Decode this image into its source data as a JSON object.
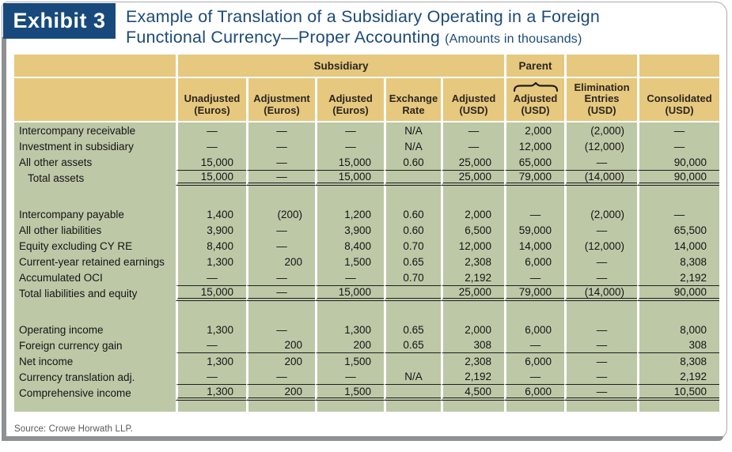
{
  "exhibit": {
    "label": "Exhibit 3",
    "title": "Example of Translation of a Subsidiary Operating in a Foreign\nFunctional Currency—Proper Accounting ",
    "subtitle": "(Amounts in thousands)",
    "source": "Source: Crowe Horwath LLP."
  },
  "colors": {
    "navy_tab": "#17497C",
    "header_tan": "#E6C87E",
    "body_green": "#BDC8A7",
    "rule_black": "#1E1E1E",
    "frame_gray": "#8E9092"
  },
  "table": {
    "groups": {
      "subsidiary": "Subsidiary",
      "parent": "Parent"
    },
    "columns": [
      {
        "label": ""
      },
      {
        "label": "Unadjusted\n(Euros)"
      },
      {
        "label": "Adjustment\n(Euros)"
      },
      {
        "label": "Adjusted\n(Euros)"
      },
      {
        "label": "Exchange\nRate"
      },
      {
        "label": "Adjusted\n(USD)"
      },
      {
        "label": "Adjusted\n(USD)",
        "brace": true
      },
      {
        "label": "Elimination\nEntries\n(USD)"
      },
      {
        "label": "Consolidated\n(USD)"
      }
    ],
    "rows": [
      {
        "label": "Intercompany receivable",
        "values": [
          "—",
          "—",
          "—",
          "N/A",
          "—",
          "2,000",
          "(2,000)",
          "—"
        ]
      },
      {
        "label": "Investment in subsidiary",
        "values": [
          "—",
          "—",
          "—",
          "N/A",
          "—",
          "12,000",
          "(12,000)",
          "—"
        ]
      },
      {
        "label": "All other assets",
        "values": [
          "15,000",
          "—",
          "15,000",
          "0.60",
          "25,000",
          "65,000",
          "—",
          "90,000"
        ]
      },
      {
        "label": "Total assets",
        "indent": true,
        "rule_top": "single",
        "rule_bottom": "double",
        "values": [
          "15,000",
          "—",
          "15,000",
          "",
          "25,000",
          "79,000",
          "(14,000)",
          "90,000"
        ]
      },
      {
        "spacer": true
      },
      {
        "label": "Intercompany payable",
        "values": [
          "1,400",
          "(200)",
          "1,200",
          "0.60",
          "2,000",
          "—",
          "(2,000)",
          "—"
        ]
      },
      {
        "label": "All other liabilities",
        "values": [
          "3,900",
          "—",
          "3,900",
          "0.60",
          "6,500",
          "59,000",
          "—",
          "65,500"
        ]
      },
      {
        "label": "Equity excluding CY RE",
        "values": [
          "8,400",
          "—",
          "8,400",
          "0.70",
          "12,000",
          "14,000",
          "(12,000)",
          "14,000"
        ]
      },
      {
        "label": "Current-year retained earnings",
        "values": [
          "1,300",
          "200",
          "1,500",
          "0.65",
          "2,308",
          "6,000",
          "—",
          "8,308"
        ]
      },
      {
        "label": "Accumulated OCI",
        "values": [
          "—",
          "—",
          "—",
          "0.70",
          "2,192",
          "—",
          "—",
          "2,192"
        ]
      },
      {
        "label": "Total liabilities and equity",
        "rule_top": "single",
        "rule_bottom": "double",
        "values": [
          "15,000",
          "—",
          "15,000",
          "",
          "25,000",
          "79,000",
          "(14,000)",
          "90,000"
        ]
      },
      {
        "spacer": true
      },
      {
        "label": "Operating income",
        "values": [
          "1,300",
          "—",
          "1,300",
          "0.65",
          "2,000",
          "6,000",
          "—",
          "8,000"
        ]
      },
      {
        "label": "Foreign currency gain",
        "rule_bottom": "single",
        "values": [
          "—",
          "200",
          "200",
          "0.65",
          "308",
          "—",
          "—",
          "308"
        ]
      },
      {
        "label": "Net income",
        "values": [
          "1,300",
          "200",
          "1,500",
          "",
          "2,308",
          "6,000",
          "—",
          "8,308"
        ]
      },
      {
        "label": "Currency translation adj.",
        "rule_bottom": "single",
        "values": [
          "—",
          "—",
          "—",
          "N/A",
          "2,192",
          "—",
          "—",
          "2,192"
        ]
      },
      {
        "label": "Comprehensive income",
        "rule_bottom": "double",
        "values": [
          "1,300",
          "200",
          "1,500",
          "",
          "4,500",
          "6,000",
          "—",
          "10,500"
        ]
      },
      {
        "spacer": true,
        "small": true
      }
    ]
  }
}
